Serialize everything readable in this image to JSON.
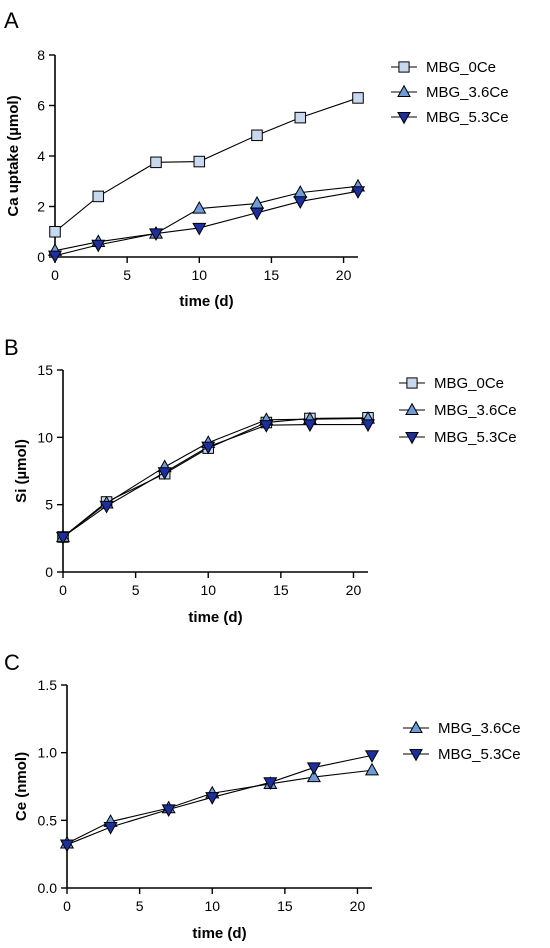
{
  "colors": {
    "axis": "#000000",
    "line": "#000000",
    "MBG_0Ce": "#c7d8ef",
    "MBG_3.6Ce": "#6f9bd6",
    "MBG_5.3Ce": "#1b2fa0"
  },
  "chart_data": [
    {
      "type": "line",
      "panel": "A",
      "xlabel": "time (d)",
      "ylabel": "Ca uptake (µmol)",
      "xlim": [
        0,
        21
      ],
      "ylim": [
        0,
        8
      ],
      "xticks": [
        "0",
        "5",
        "10",
        "15",
        "20"
      ],
      "yticks": [
        "0",
        "2",
        "4",
        "6",
        "8"
      ],
      "legend_position": "right",
      "x": [
        0,
        3,
        7,
        10,
        14,
        17,
        21
      ],
      "series": [
        {
          "name": "MBG_0Ce",
          "marker": "square",
          "values": [
            1.0,
            2.4,
            3.75,
            3.78,
            4.82,
            5.52,
            6.3
          ]
        },
        {
          "name": "MBG_3.6Ce",
          "marker": "triangle-up",
          "values": [
            0.25,
            0.6,
            0.93,
            1.92,
            2.12,
            2.55,
            2.8
          ]
        },
        {
          "name": "MBG_5.3Ce",
          "marker": "triangle-down",
          "values": [
            0.05,
            0.48,
            0.93,
            1.15,
            1.75,
            2.2,
            2.6
          ]
        }
      ]
    },
    {
      "type": "line",
      "panel": "B",
      "xlabel": "time (d)",
      "ylabel": "Si (µmol)",
      "xlim": [
        0,
        21
      ],
      "ylim": [
        0,
        15
      ],
      "xticks": [
        "0",
        "5",
        "10",
        "15",
        "20"
      ],
      "yticks": [
        "0",
        "5",
        "10",
        "15"
      ],
      "legend_position": "right",
      "x": [
        0,
        3,
        7,
        10,
        14,
        17,
        21
      ],
      "series": [
        {
          "name": "MBG_0Ce",
          "marker": "square",
          "values": [
            2.6,
            5.2,
            7.3,
            9.2,
            11.1,
            11.4,
            11.45
          ]
        },
        {
          "name": "MBG_3.6Ce",
          "marker": "triangle-up",
          "values": [
            2.6,
            5.1,
            7.8,
            9.6,
            11.3,
            11.35,
            11.4
          ]
        },
        {
          "name": "MBG_5.3Ce",
          "marker": "triangle-down",
          "values": [
            2.6,
            4.9,
            7.4,
            9.3,
            10.9,
            10.95,
            10.95
          ]
        }
      ]
    },
    {
      "type": "line",
      "panel": "C",
      "xlabel": "time (d)",
      "ylabel": "Ce (nmol)",
      "xlim": [
        0,
        21
      ],
      "ylim": [
        0,
        1.5
      ],
      "xticks": [
        "0",
        "5",
        "10",
        "15",
        "20"
      ],
      "yticks": [
        "0.0",
        "0.5",
        "1.0",
        "1.5"
      ],
      "legend_position": "right",
      "x": [
        0,
        3,
        7,
        10,
        14,
        17,
        21
      ],
      "series": [
        {
          "name": "MBG_3.6Ce",
          "marker": "triangle-up",
          "values": [
            0.33,
            0.49,
            0.59,
            0.7,
            0.77,
            0.82,
            0.87
          ]
        },
        {
          "name": "MBG_5.3Ce",
          "marker": "triangle-down",
          "values": [
            0.32,
            0.45,
            0.58,
            0.67,
            0.78,
            0.89,
            0.98
          ]
        }
      ]
    }
  ]
}
